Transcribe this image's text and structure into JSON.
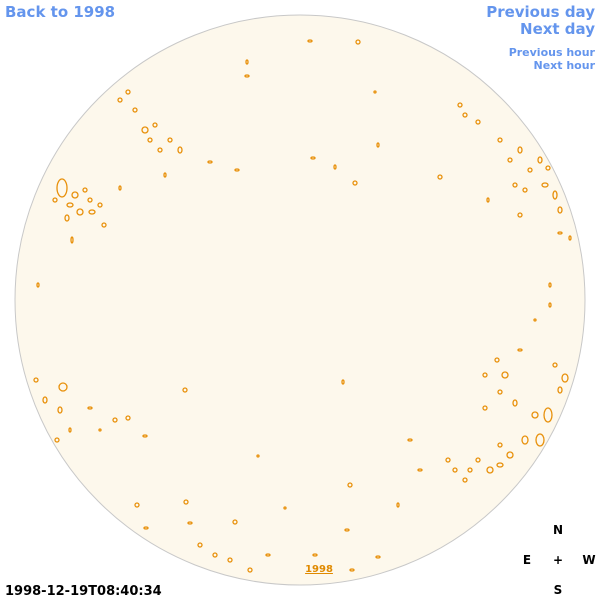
{
  "nav": {
    "back": "Back to 1998",
    "previous_day": "Previous day",
    "next_day": "Next day",
    "previous_hour": "Previous hour",
    "next_hour": "Next hour"
  },
  "year_link": "1998",
  "timestamp": "1998-12-19T08:40:34",
  "compass": {
    "north": "N",
    "east": "E",
    "center": "+",
    "west": "W",
    "south": "S"
  }
}
